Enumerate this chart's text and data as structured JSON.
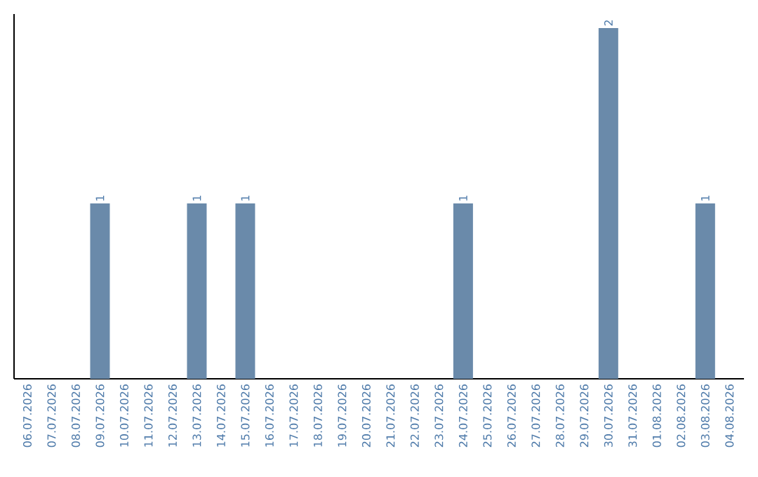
{
  "chart_data": {
    "type": "bar",
    "categories": [
      "06.07.2026",
      "07.07.2026",
      "08.07.2026",
      "09.07.2026",
      "10.07.2026",
      "11.07.2026",
      "12.07.2026",
      "13.07.2026",
      "14.07.2026",
      "15.07.2026",
      "16.07.2026",
      "17.07.2026",
      "18.07.2026",
      "19.07.2026",
      "20.07.2026",
      "21.07.2026",
      "22.07.2026",
      "23.07.2026",
      "24.07.2026",
      "25.07.2026",
      "26.07.2026",
      "27.07.2026",
      "28.07.2026",
      "29.07.2026",
      "30.07.2026",
      "31.07.2026",
      "01.08.2026",
      "02.08.2026",
      "03.08.2026",
      "04.08.2026"
    ],
    "values": [
      0,
      0,
      0,
      1,
      0,
      0,
      0,
      1,
      0,
      1,
      0,
      0,
      0,
      0,
      0,
      0,
      0,
      0,
      1,
      0,
      0,
      0,
      0,
      0,
      2,
      0,
      0,
      0,
      1,
      0
    ],
    "value_labels": [
      null,
      null,
      null,
      "1",
      null,
      null,
      null,
      "1",
      null,
      "1",
      null,
      null,
      null,
      null,
      null,
      null,
      null,
      null,
      "1",
      null,
      null,
      null,
      null,
      null,
      "2",
      null,
      null,
      null,
      "1",
      null
    ],
    "color": "#6a8aaa"
  }
}
